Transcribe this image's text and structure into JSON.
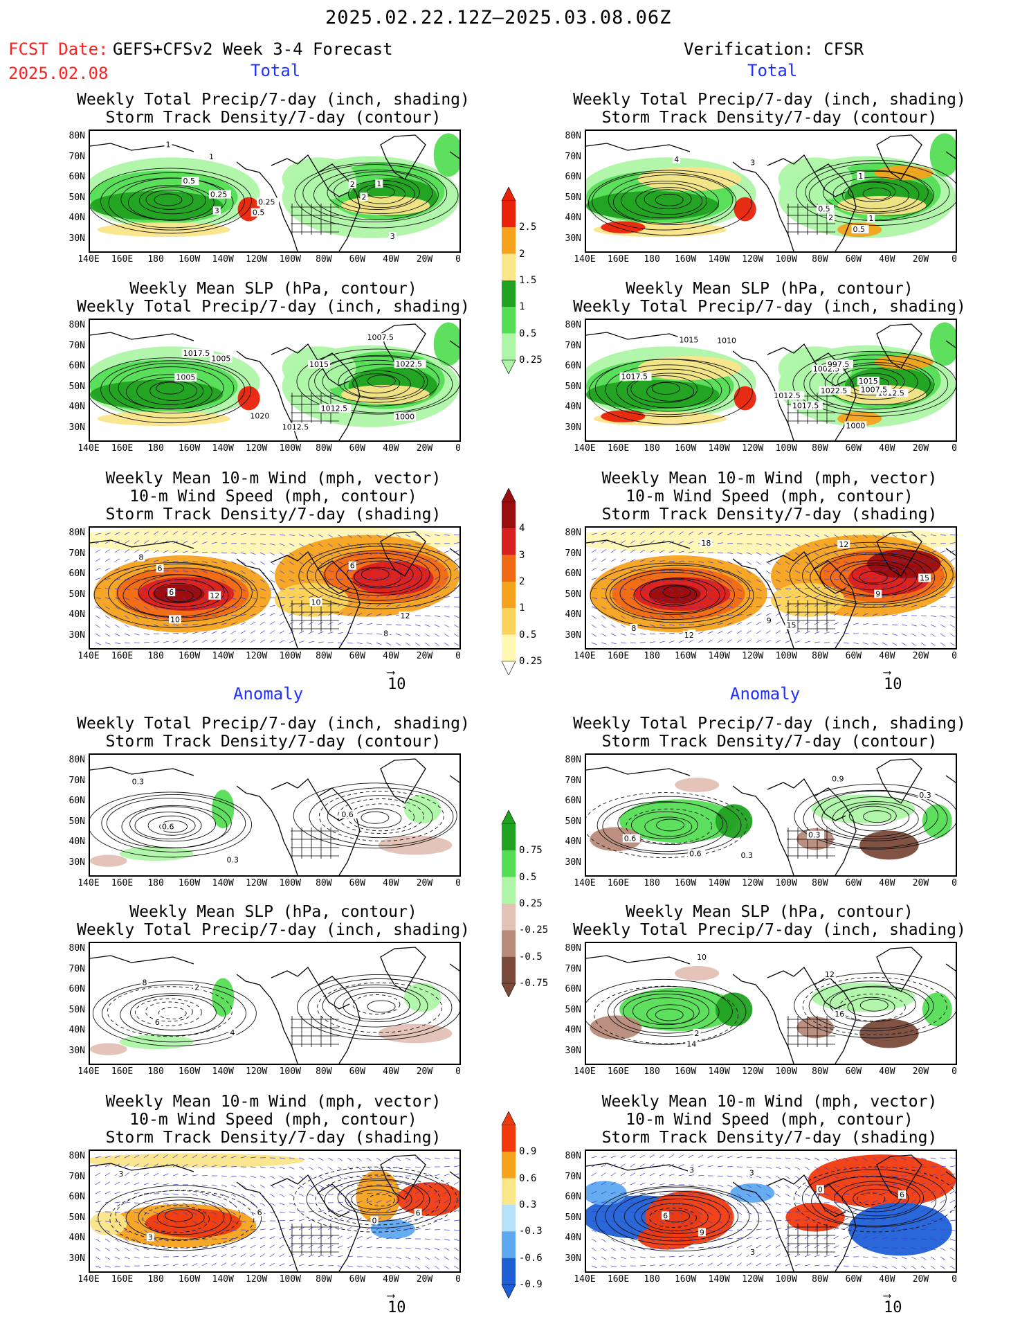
{
  "header": {
    "date_range": "2025.02.22.12Z–2025.03.08.06Z",
    "fcst_label": "FCST Date:",
    "fcst_model": "GEFS+CFSv2 Week 3-4 Forecast",
    "fcst_date": "2025.02.08",
    "verification": "Verification: CFSR"
  },
  "sections": {
    "total": "Total",
    "anomaly": "Anomaly"
  },
  "panel_titles": {
    "precip_storm": [
      "Weekly Total Precip/7-day (inch, shading)",
      "Storm Track Density/7-day (contour)"
    ],
    "slp_precip": [
      "Weekly Mean SLP (hPa, contour)",
      "Weekly Total Precip/7-day (inch, shading)"
    ],
    "wind_storm": [
      "Weekly Mean 10-m Wind (mph, vector)",
      "10-m Wind Speed (mph, contour)",
      "Storm Track Density/7-day (shading)"
    ]
  },
  "axes": {
    "lat_labels": [
      "80N",
      "70N",
      "60N",
      "50N",
      "40N",
      "30N"
    ],
    "lon_labels": [
      "140E",
      "160E",
      "180",
      "160W",
      "140W",
      "120W",
      "100W",
      "80W",
      "60W",
      "40W",
      "20W",
      "0"
    ]
  },
  "vector_ref": "10",
  "colorbars": {
    "precip_total": {
      "labels": [
        "2.5",
        "2",
        "1.5",
        "1",
        "0.5",
        "0.25"
      ],
      "colors": [
        "#e8220a",
        "#f5a21c",
        "#fbe58a",
        "#21a121",
        "#55dd55",
        "#aef5a8"
      ]
    },
    "storm_total": {
      "labels": [
        "4",
        "3",
        "2",
        "1",
        "0.5",
        "0.25"
      ],
      "colors": [
        "#9a0d0d",
        "#d92020",
        "#f06a15",
        "#f5a21c",
        "#fbd35a",
        "#fff7b3"
      ]
    },
    "precip_anom": {
      "labels": [
        "0.75",
        "0.5",
        "0.25",
        "-0.25",
        "-0.5",
        "-0.75"
      ],
      "colors": [
        "#21a121",
        "#55dd55",
        "#aef5a8",
        "#e3c1b4",
        "#b88a7a",
        "#7a4a3a"
      ]
    },
    "storm_anom": {
      "labels": [
        "0.9",
        "0.6",
        "0.3",
        "-0.3",
        "-0.6",
        "-0.9"
      ],
      "colors": [
        "#f03a0e",
        "#f5a21c",
        "#fbe58a",
        "#b5e2fa",
        "#5ea8f0",
        "#1f5fd6"
      ]
    }
  },
  "contour_labels": {
    "L1": [
      "0.25",
      "0.5",
      "1",
      "2",
      "3",
      "1",
      "0.5",
      "0.25",
      "3",
      "2",
      "1"
    ],
    "R1": [
      "3",
      "0.5",
      "1",
      "2",
      "4",
      "0.5",
      "1"
    ],
    "L2": [
      "1012.5",
      "1005",
      "1022.5",
      "1020",
      "1000",
      "1017.5",
      "1005",
      "1007.5",
      "1012.5",
      "1015"
    ],
    "R2": [
      "1002.5",
      "1000",
      "1012.5",
      "1010",
      "1015",
      "1017.5",
      "997.5",
      "1015",
      "1012.5",
      "1017.5",
      "1007.5",
      "1022.5"
    ],
    "L3": [
      "8",
      "6",
      "10",
      "8",
      "12",
      "6",
      "10",
      "12",
      "6"
    ],
    "R3": [
      "9",
      "12",
      "9",
      "15",
      "12",
      "9",
      "15",
      "18",
      "8"
    ],
    "L4": [
      "0.3",
      "0.6",
      "0.3",
      "0.6"
    ],
    "R4": [
      "0.6",
      "0.9",
      "0.3",
      "0.3",
      "0.6",
      "0.3"
    ],
    "L5": [
      "2",
      "6",
      "8",
      "4"
    ],
    "R5": [
      "14",
      "12",
      "16",
      "10",
      "2"
    ],
    "L6": [
      "6",
      "3",
      "0",
      "3",
      "6"
    ],
    "R6": [
      "3",
      "0",
      "3",
      "6",
      "9",
      "3",
      "6"
    ]
  }
}
